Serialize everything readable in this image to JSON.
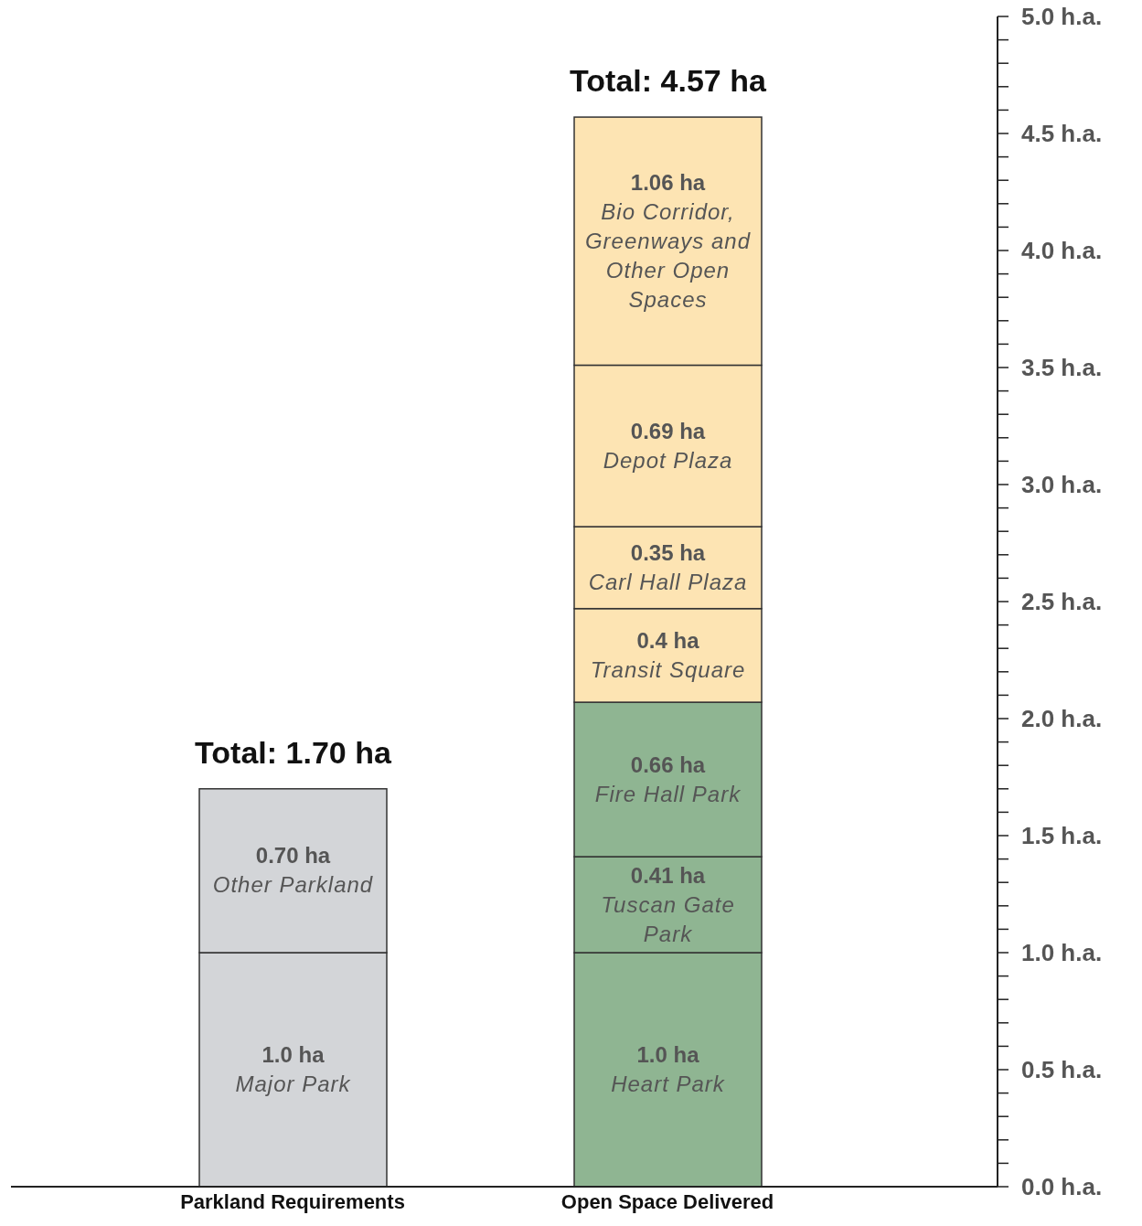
{
  "chart_data": {
    "type": "bar",
    "stacked": true,
    "categories": [
      "Parkland Requirements",
      "Open Space Delivered"
    ],
    "series": [
      {
        "name": "Major Park",
        "color": "#d3d5d8",
        "values": [
          1.0,
          null
        ],
        "value_labels": [
          "1.0 ha",
          null
        ]
      },
      {
        "name": "Other Parkland",
        "color": "#d3d5d8",
        "values": [
          0.7,
          null
        ],
        "value_labels": [
          "0.70 ha",
          null
        ]
      },
      {
        "name": "Heart Park",
        "color": "#8fb592",
        "values": [
          null,
          1.0
        ],
        "value_labels": [
          null,
          "1.0 ha"
        ]
      },
      {
        "name": "Tuscan Gate Park",
        "color": "#8fb592",
        "values": [
          null,
          0.41
        ],
        "value_labels": [
          null,
          "0.41 ha"
        ]
      },
      {
        "name": "Fire Hall Park",
        "color": "#8fb592",
        "values": [
          null,
          0.66
        ],
        "value_labels": [
          null,
          "0.66 ha"
        ]
      },
      {
        "name": "Transit Square",
        "color": "#fde4b3",
        "values": [
          null,
          0.4
        ],
        "value_labels": [
          null,
          "0.4 ha"
        ]
      },
      {
        "name": "Carl Hall Plaza",
        "color": "#fde4b3",
        "values": [
          null,
          0.35
        ],
        "value_labels": [
          null,
          "0.35 ha"
        ]
      },
      {
        "name": "Depot Plaza",
        "color": "#fde4b3",
        "values": [
          null,
          0.69
        ],
        "value_labels": [
          null,
          "0.69 ha"
        ]
      },
      {
        "name": "Bio Corridor, Greenways and Other Open Spaces",
        "color": "#fde4b3",
        "values": [
          null,
          1.06
        ],
        "value_labels": [
          null,
          "1.06 ha"
        ]
      }
    ],
    "totals": [
      "Total: 1.70 ha",
      "Total: 4.57 ha"
    ],
    "ylim": [
      0,
      5
    ],
    "yticks": [
      {
        "value": 0,
        "label": "0.0 h.a."
      },
      {
        "value": 0.1,
        "label": null
      },
      {
        "value": 0.2,
        "label": null
      },
      {
        "value": 0.3,
        "label": null
      },
      {
        "value": 0.4,
        "label": null
      },
      {
        "value": 0.5,
        "label": "0.5 h.a."
      },
      {
        "value": 0.6,
        "label": null
      },
      {
        "value": 0.7,
        "label": null
      },
      {
        "value": 0.8,
        "label": null
      },
      {
        "value": 0.9,
        "label": null
      },
      {
        "value": 1,
        "label": "1.0 h.a."
      },
      {
        "value": 1.1,
        "label": null
      },
      {
        "value": 1.2,
        "label": null
      },
      {
        "value": 1.3,
        "label": null
      },
      {
        "value": 1.4,
        "label": null
      },
      {
        "value": 1.5,
        "label": "1.5 h.a."
      },
      {
        "value": 1.6,
        "label": null
      },
      {
        "value": 1.7,
        "label": null
      },
      {
        "value": 1.8,
        "label": null
      },
      {
        "value": 1.9,
        "label": null
      },
      {
        "value": 2,
        "label": "2.0 h.a."
      },
      {
        "value": 2.1,
        "label": null
      },
      {
        "value": 2.2,
        "label": null
      },
      {
        "value": 2.3,
        "label": null
      },
      {
        "value": 2.4,
        "label": null
      },
      {
        "value": 2.5,
        "label": "2.5 h.a."
      },
      {
        "value": 2.6,
        "label": null
      },
      {
        "value": 2.7,
        "label": null
      },
      {
        "value": 2.8,
        "label": null
      },
      {
        "value": 2.9,
        "label": null
      },
      {
        "value": 3,
        "label": "3.0 h.a."
      },
      {
        "value": 3.1,
        "label": null
      },
      {
        "value": 3.2,
        "label": null
      },
      {
        "value": 3.3,
        "label": null
      },
      {
        "value": 3.4,
        "label": null
      },
      {
        "value": 3.5,
        "label": "3.5 h.a."
      },
      {
        "value": 3.6,
        "label": null
      },
      {
        "value": 3.7,
        "label": null
      },
      {
        "value": 3.8,
        "label": null
      },
      {
        "value": 3.9,
        "label": null
      },
      {
        "value": 4,
        "label": "4.0 h.a."
      },
      {
        "value": 4.1,
        "label": null
      },
      {
        "value": 4.2,
        "label": null
      },
      {
        "value": 4.3,
        "label": null
      },
      {
        "value": 4.4,
        "label": null
      },
      {
        "value": 4.5,
        "label": "4.5 h.a."
      },
      {
        "value": 4.6,
        "label": null
      },
      {
        "value": 4.7,
        "label": null
      },
      {
        "value": 4.8,
        "label": null
      },
      {
        "value": 4.9,
        "label": null
      },
      {
        "value": 5,
        "label": "5.0 h.a."
      }
    ]
  }
}
